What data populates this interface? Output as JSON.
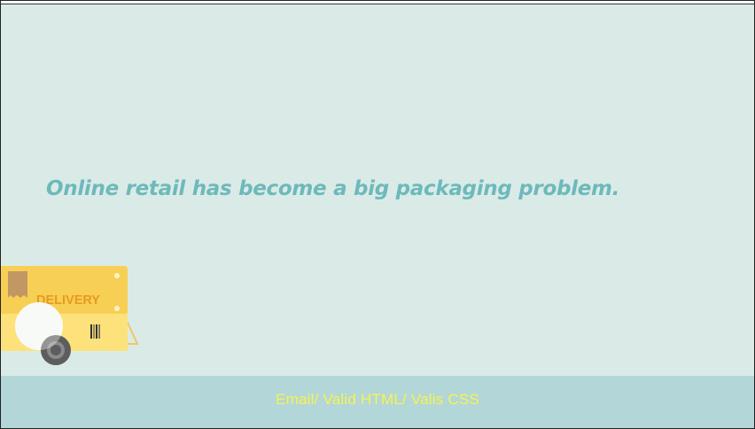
{
  "hero": {
    "headline": "Online retail has become a big packaging problem."
  },
  "illustration": {
    "truck_label": "DELIVERY",
    "colors": {
      "body": "#fbd867",
      "panel": "#f7c84a",
      "label_text": "#e79b1e",
      "stamp": "#c39763",
      "wheel": "#5d5d5d"
    }
  },
  "footer": {
    "links": [
      {
        "label": "Email"
      },
      {
        "label": "Valid HTML"
      },
      {
        "label": "Valis CSS"
      }
    ],
    "separator": "/ "
  },
  "colors": {
    "background": "#daebe7",
    "footer_bg": "#b3d6d9",
    "headline": "#6db9bb",
    "footer_text": "#eef36a"
  }
}
